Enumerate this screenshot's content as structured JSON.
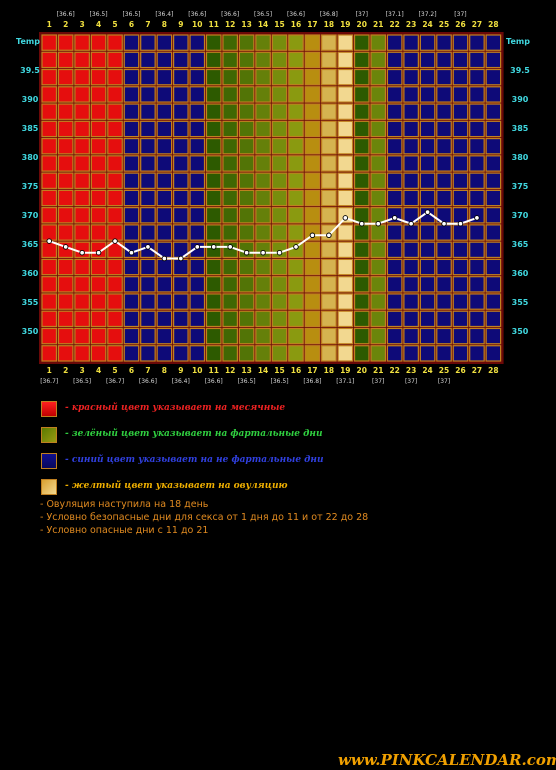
{
  "chart_data": {
    "type": "line",
    "days": [
      1,
      2,
      3,
      4,
      5,
      6,
      7,
      8,
      9,
      10,
      11,
      12,
      13,
      14,
      15,
      16,
      17,
      18,
      19,
      20,
      21,
      22,
      23,
      24,
      25,
      26,
      27,
      28
    ],
    "day_colors": [
      "red",
      "red",
      "red",
      "red",
      "red",
      "blue",
      "blue",
      "blue",
      "blue",
      "blue",
      "green",
      "green",
      "green",
      "green",
      "green",
      "green",
      "gold",
      "gold",
      "gold",
      "green",
      "green",
      "blue",
      "blue",
      "blue",
      "blue",
      "blue",
      "blue",
      "blue"
    ],
    "temperatures": [
      36.55,
      36.45,
      36.35,
      36.35,
      36.55,
      36.35,
      36.45,
      36.25,
      36.25,
      36.45,
      36.45,
      36.45,
      36.35,
      36.35,
      36.35,
      36.45,
      36.65,
      36.65,
      36.95,
      36.85,
      36.85,
      36.95,
      36.85,
      37.05,
      36.85,
      36.85,
      36.95,
      null
    ],
    "top_temp_labels": {
      "2": "36.6",
      "4": "36.5",
      "6": "36.5",
      "8": "36.4",
      "10": "36.6",
      "12": "36.6",
      "14": "36.5",
      "16": "36.6",
      "18": "36.8",
      "20": "37",
      "22": "37.1",
      "24": "37.2",
      "26": "37"
    },
    "bottom_temp_labels": {
      "1": "36.7",
      "3": "36.5",
      "5": "36.7",
      "7": "36.6",
      "9": "36.4",
      "11": "36.6",
      "13": "36.5",
      "15": "36.5",
      "17": "36.8",
      "19": "37.1",
      "21": "37",
      "23": "37",
      "25": "37"
    },
    "y_axis_title": "Temp",
    "y_ticks": [
      "39.5",
      "390",
      "385",
      "380",
      "375",
      "370",
      "365",
      "360",
      "355",
      "350"
    ],
    "ylim": [
      34.7,
      40.0
    ]
  },
  "colors": {
    "red": "#e50e0e",
    "blue": "#0e0a78",
    "green_dark": "#3a6a00",
    "green_light": "#9a9a12",
    "gold_dark": "#c89a10",
    "gold_light": "#eed48a",
    "grid": "#c08020",
    "frame": "#6a0808",
    "line": "#ffffff",
    "tick_day": "#f0e040",
    "tick_temp": "#40d8e0"
  },
  "legend": [
    {
      "swatch": "red",
      "text": "- красный цвет указывает на месячные",
      "color": "#ee2222"
    },
    {
      "swatch": "green",
      "text": "- зелёный цвет указывает на фартальные дни",
      "color": "#30d040"
    },
    {
      "swatch": "blue",
      "text": "- синий цвет указывает на не фартальные дни",
      "color": "#3040e0"
    },
    {
      "swatch": "gold",
      "text": "- желтый цвет указывает на овуляцию",
      "color": "#f0b000"
    }
  ],
  "notes": {
    "n1": "- Овуляция наступила на 18 день",
    "n2": "- Условно безопасные дни для секса от 1 дня до 11 и от 22 до 28",
    "n3": "- Условно опасные дни с 11 до 21"
  },
  "brand": "www.PINKCALENDAR.com"
}
